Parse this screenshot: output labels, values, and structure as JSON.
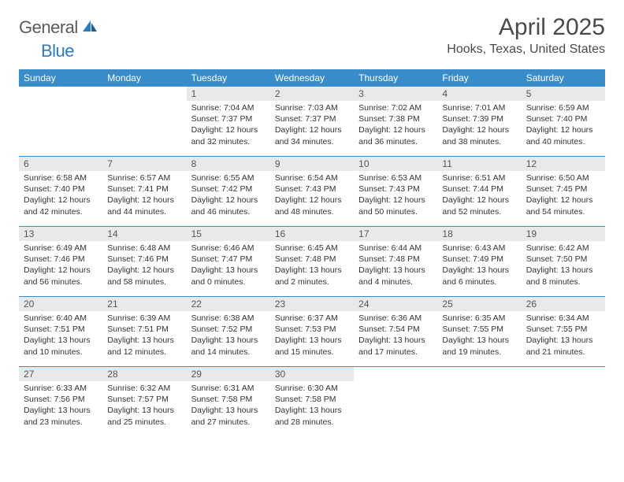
{
  "brand": {
    "name_part1": "General",
    "name_part2": "Blue",
    "text_color": "#5a5a5a",
    "blue_color": "#2b7bbf"
  },
  "header": {
    "title": "April 2025",
    "location": "Hooks, Texas, United States"
  },
  "style": {
    "header_bg": "#3a8cc9",
    "daynum_bg": "#e9e9e9",
    "divider": "#3a8cc9",
    "page_bg": "#ffffff"
  },
  "weekdays": [
    "Sunday",
    "Monday",
    "Tuesday",
    "Wednesday",
    "Thursday",
    "Friday",
    "Saturday"
  ],
  "weeks": [
    [
      {
        "empty": true
      },
      {
        "empty": true
      },
      {
        "num": "1",
        "sunrise": "Sunrise: 7:04 AM",
        "sunset": "Sunset: 7:37 PM",
        "daylight": "Daylight: 12 hours and 32 minutes."
      },
      {
        "num": "2",
        "sunrise": "Sunrise: 7:03 AM",
        "sunset": "Sunset: 7:37 PM",
        "daylight": "Daylight: 12 hours and 34 minutes."
      },
      {
        "num": "3",
        "sunrise": "Sunrise: 7:02 AM",
        "sunset": "Sunset: 7:38 PM",
        "daylight": "Daylight: 12 hours and 36 minutes."
      },
      {
        "num": "4",
        "sunrise": "Sunrise: 7:01 AM",
        "sunset": "Sunset: 7:39 PM",
        "daylight": "Daylight: 12 hours and 38 minutes."
      },
      {
        "num": "5",
        "sunrise": "Sunrise: 6:59 AM",
        "sunset": "Sunset: 7:40 PM",
        "daylight": "Daylight: 12 hours and 40 minutes."
      }
    ],
    [
      {
        "num": "6",
        "sunrise": "Sunrise: 6:58 AM",
        "sunset": "Sunset: 7:40 PM",
        "daylight": "Daylight: 12 hours and 42 minutes."
      },
      {
        "num": "7",
        "sunrise": "Sunrise: 6:57 AM",
        "sunset": "Sunset: 7:41 PM",
        "daylight": "Daylight: 12 hours and 44 minutes."
      },
      {
        "num": "8",
        "sunrise": "Sunrise: 6:55 AM",
        "sunset": "Sunset: 7:42 PM",
        "daylight": "Daylight: 12 hours and 46 minutes."
      },
      {
        "num": "9",
        "sunrise": "Sunrise: 6:54 AM",
        "sunset": "Sunset: 7:43 PM",
        "daylight": "Daylight: 12 hours and 48 minutes."
      },
      {
        "num": "10",
        "sunrise": "Sunrise: 6:53 AM",
        "sunset": "Sunset: 7:43 PM",
        "daylight": "Daylight: 12 hours and 50 minutes."
      },
      {
        "num": "11",
        "sunrise": "Sunrise: 6:51 AM",
        "sunset": "Sunset: 7:44 PM",
        "daylight": "Daylight: 12 hours and 52 minutes."
      },
      {
        "num": "12",
        "sunrise": "Sunrise: 6:50 AM",
        "sunset": "Sunset: 7:45 PM",
        "daylight": "Daylight: 12 hours and 54 minutes."
      }
    ],
    [
      {
        "num": "13",
        "sunrise": "Sunrise: 6:49 AM",
        "sunset": "Sunset: 7:46 PM",
        "daylight": "Daylight: 12 hours and 56 minutes."
      },
      {
        "num": "14",
        "sunrise": "Sunrise: 6:48 AM",
        "sunset": "Sunset: 7:46 PM",
        "daylight": "Daylight: 12 hours and 58 minutes."
      },
      {
        "num": "15",
        "sunrise": "Sunrise: 6:46 AM",
        "sunset": "Sunset: 7:47 PM",
        "daylight": "Daylight: 13 hours and 0 minutes."
      },
      {
        "num": "16",
        "sunrise": "Sunrise: 6:45 AM",
        "sunset": "Sunset: 7:48 PM",
        "daylight": "Daylight: 13 hours and 2 minutes."
      },
      {
        "num": "17",
        "sunrise": "Sunrise: 6:44 AM",
        "sunset": "Sunset: 7:48 PM",
        "daylight": "Daylight: 13 hours and 4 minutes."
      },
      {
        "num": "18",
        "sunrise": "Sunrise: 6:43 AM",
        "sunset": "Sunset: 7:49 PM",
        "daylight": "Daylight: 13 hours and 6 minutes."
      },
      {
        "num": "19",
        "sunrise": "Sunrise: 6:42 AM",
        "sunset": "Sunset: 7:50 PM",
        "daylight": "Daylight: 13 hours and 8 minutes."
      }
    ],
    [
      {
        "num": "20",
        "sunrise": "Sunrise: 6:40 AM",
        "sunset": "Sunset: 7:51 PM",
        "daylight": "Daylight: 13 hours and 10 minutes."
      },
      {
        "num": "21",
        "sunrise": "Sunrise: 6:39 AM",
        "sunset": "Sunset: 7:51 PM",
        "daylight": "Daylight: 13 hours and 12 minutes."
      },
      {
        "num": "22",
        "sunrise": "Sunrise: 6:38 AM",
        "sunset": "Sunset: 7:52 PM",
        "daylight": "Daylight: 13 hours and 14 minutes."
      },
      {
        "num": "23",
        "sunrise": "Sunrise: 6:37 AM",
        "sunset": "Sunset: 7:53 PM",
        "daylight": "Daylight: 13 hours and 15 minutes."
      },
      {
        "num": "24",
        "sunrise": "Sunrise: 6:36 AM",
        "sunset": "Sunset: 7:54 PM",
        "daylight": "Daylight: 13 hours and 17 minutes."
      },
      {
        "num": "25",
        "sunrise": "Sunrise: 6:35 AM",
        "sunset": "Sunset: 7:55 PM",
        "daylight": "Daylight: 13 hours and 19 minutes."
      },
      {
        "num": "26",
        "sunrise": "Sunrise: 6:34 AM",
        "sunset": "Sunset: 7:55 PM",
        "daylight": "Daylight: 13 hours and 21 minutes."
      }
    ],
    [
      {
        "num": "27",
        "sunrise": "Sunrise: 6:33 AM",
        "sunset": "Sunset: 7:56 PM",
        "daylight": "Daylight: 13 hours and 23 minutes."
      },
      {
        "num": "28",
        "sunrise": "Sunrise: 6:32 AM",
        "sunset": "Sunset: 7:57 PM",
        "daylight": "Daylight: 13 hours and 25 minutes."
      },
      {
        "num": "29",
        "sunrise": "Sunrise: 6:31 AM",
        "sunset": "Sunset: 7:58 PM",
        "daylight": "Daylight: 13 hours and 27 minutes."
      },
      {
        "num": "30",
        "sunrise": "Sunrise: 6:30 AM",
        "sunset": "Sunset: 7:58 PM",
        "daylight": "Daylight: 13 hours and 28 minutes."
      },
      {
        "empty": true
      },
      {
        "empty": true
      },
      {
        "empty": true
      }
    ]
  ]
}
